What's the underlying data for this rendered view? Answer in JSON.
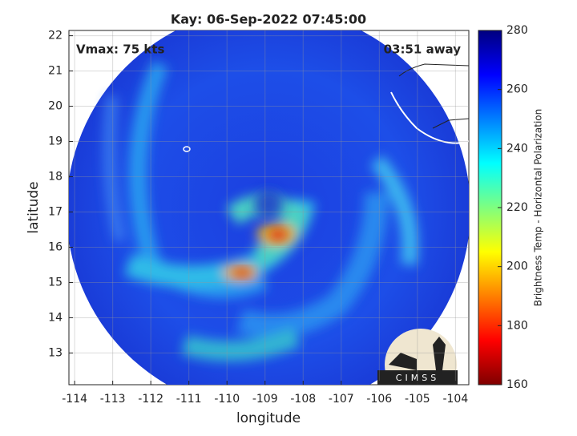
{
  "chart_data": {
    "type": "image-map",
    "title": "Kay: 06-Sep-2022 07:45:00",
    "xlabel": "longitude",
    "ylabel": "latitude",
    "xlim": [
      -114.15,
      -103.65
    ],
    "ylim": [
      12.1,
      22.15
    ],
    "xticks": [
      -114,
      -113,
      -112,
      -111,
      -110,
      -109,
      -108,
      -107,
      -106,
      -105,
      -104
    ],
    "yticks": [
      13,
      14,
      15,
      16,
      17,
      18,
      19,
      20,
      21,
      22
    ],
    "annotations": [
      "Vmax: 75 kts",
      "03:51 away"
    ],
    "logo": "CIMSS",
    "colorbar": {
      "label": "Brightness Temp - Horizontal Polarization",
      "clim": [
        160,
        280
      ],
      "ticks": [
        160,
        180,
        200,
        220,
        240,
        260,
        280
      ],
      "colormap": "jet_r"
    }
  }
}
